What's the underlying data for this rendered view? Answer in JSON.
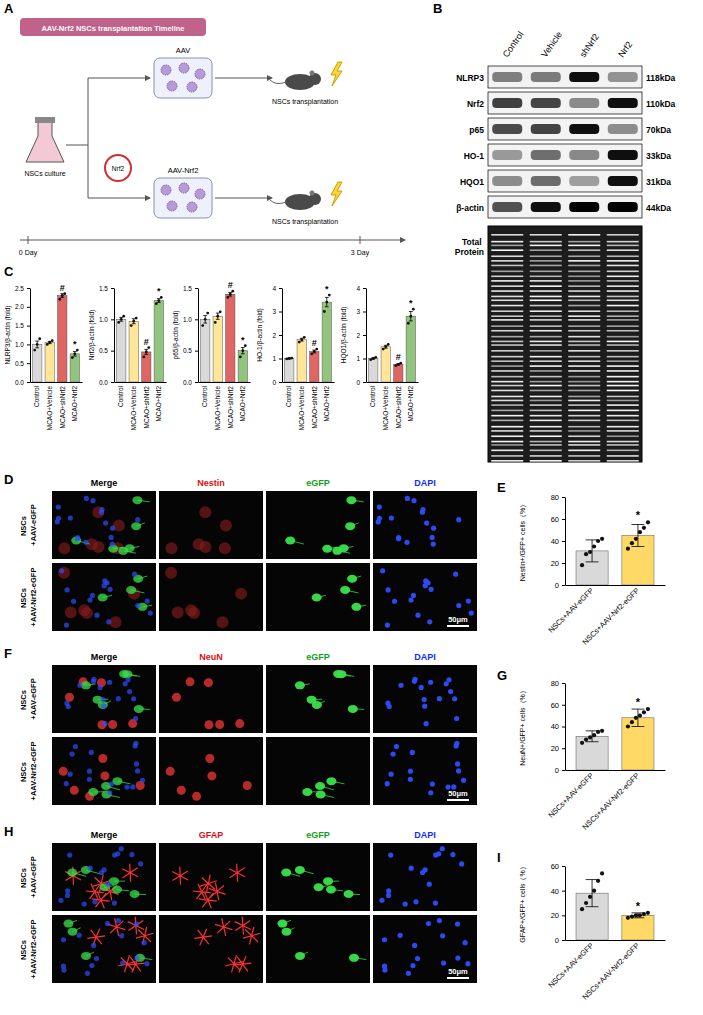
{
  "panel_letters": [
    "A",
    "B",
    "C",
    "D",
    "E",
    "F",
    "G",
    "H",
    "I"
  ],
  "schematic": {
    "title": "AAV-Nrf2 NSCs transplantation Timeline",
    "culture_label": "NSCs culture",
    "vector_labels": [
      "AAV",
      "AAV-Nrf2"
    ],
    "plasmid_label": "Nrf2",
    "transplant_labels": [
      "NSCs transplantation",
      "NSCs transplantation"
    ],
    "timeline_labels": [
      "0 Day",
      "3 Day"
    ]
  },
  "western_blot": {
    "lanes": [
      "Control",
      "Vehicle",
      "shNrf2",
      "Nrf2"
    ],
    "proteins": [
      "NLRP3",
      "Nrf2",
      "p65",
      "HO-1",
      "HQO1",
      "β-actin"
    ],
    "kda": [
      "118kDa",
      "110kDa",
      "70kDa",
      "33kDa",
      "31kDa",
      "44kDa"
    ],
    "total_protein": "Total Protein"
  },
  "chart_data": [
    {
      "type": "bar",
      "y_label": "NLRP3/β-actin (fold)",
      "categories": [
        "Control",
        "MCAO+Vehicle",
        "MCAO+shNrf2",
        "MCAO+Nrf2"
      ],
      "values": [
        1.0,
        1.05,
        2.3,
        0.75
      ],
      "errors": [
        0.09,
        0.03,
        0.05,
        0.06
      ],
      "points": [
        [
          0.85,
          1.0,
          1.15
        ],
        [
          1.0,
          1.05,
          1.1
        ],
        [
          2.2,
          2.3,
          2.35
        ],
        [
          0.65,
          0.75,
          0.85
        ]
      ],
      "colors": [
        "#d9d9d9",
        "#ffe699",
        "#e06666",
        "#93c47d"
      ],
      "significance": [
        null,
        null,
        "#",
        "*"
      ],
      "ylim": [
        0,
        2.5
      ],
      "yticks": [
        {
          "value": 0,
          "label": "0.0"
        },
        0.5,
        {
          "value": 1,
          "label": "1.0"
        },
        1.5,
        {
          "value": 2,
          "label": "2.0"
        },
        2.5
      ]
    },
    {
      "type": "bar",
      "y_label": "Nrf2/β-actin (fold)",
      "categories": [
        "Control",
        "MCAO+Vehicle",
        "MCAO+shNrf2",
        "MCAO+Nrf2"
      ],
      "values": [
        1.0,
        0.97,
        0.48,
        1.3
      ],
      "errors": [
        0.03,
        0.04,
        0.04,
        0.03
      ],
      "points": [
        [
          0.95,
          1.0,
          1.05
        ],
        [
          0.9,
          0.97,
          1.02
        ],
        [
          0.4,
          0.48,
          0.55
        ],
        [
          1.25,
          1.3,
          1.35
        ]
      ],
      "colors": [
        "#d9d9d9",
        "#ffe699",
        "#e06666",
        "#93c47d"
      ],
      "significance": [
        null,
        null,
        "#",
        "*"
      ],
      "ylim": [
        0,
        1.5
      ],
      "yticks": [
        {
          "value": 0,
          "label": "0.0"
        },
        0.5,
        {
          "value": 1,
          "label": "1.0"
        },
        1.5
      ]
    },
    {
      "type": "bar",
      "y_label": "p65/β-actin (fold)",
      "categories": [
        "Control",
        "MCAO+Vehicle",
        "MCAO+shNrf2",
        "MCAO+Nrf2"
      ],
      "values": [
        1.0,
        1.05,
        1.4,
        0.5
      ],
      "errors": [
        0.06,
        0.05,
        0.03,
        0.05
      ],
      "points": [
        [
          0.9,
          1.0,
          1.1
        ],
        [
          0.95,
          1.05,
          1.12
        ],
        [
          1.35,
          1.4,
          1.45
        ],
        [
          0.4,
          0.5,
          0.58
        ]
      ],
      "colors": [
        "#d9d9d9",
        "#ffe699",
        "#e06666",
        "#93c47d"
      ],
      "significance": [
        null,
        null,
        "#",
        "*"
      ],
      "ylim": [
        0,
        1.5
      ],
      "yticks": [
        {
          "value": 0,
          "label": "0.0"
        },
        0.5,
        {
          "value": 1,
          "label": "1.0"
        },
        1.5
      ]
    },
    {
      "type": "bar",
      "y_label": "HO-1/β-actin (fold)",
      "categories": [
        "Control",
        "MCAO+Vehicle",
        "MCAO+shNrf2",
        "MCAO+Nrf2"
      ],
      "values": [
        1.0,
        1.8,
        1.3,
        3.4
      ],
      "errors": [
        0.02,
        0.06,
        0.06,
        0.2
      ],
      "points": [
        [
          0.98,
          1.0,
          1.02
        ],
        [
          1.7,
          1.8,
          1.9
        ],
        [
          1.2,
          1.3,
          1.4
        ],
        [
          3.0,
          3.4,
          3.7
        ]
      ],
      "colors": [
        "#d9d9d9",
        "#ffe699",
        "#e06666",
        "#93c47d"
      ],
      "significance": [
        null,
        null,
        "#",
        "*"
      ],
      "ylim": [
        0,
        4
      ],
      "yticks": [
        0,
        1,
        2,
        3,
        4
      ]
    },
    {
      "type": "bar",
      "y_label": "HQO1/β-actin (fold)",
      "categories": [
        "Control",
        "MCAO+Vehicle",
        "MCAO+shNrf2",
        "MCAO+Nrf2"
      ],
      "values": [
        1.0,
        1.5,
        0.75,
        2.8
      ],
      "errors": [
        0.03,
        0.06,
        0.03,
        0.2
      ],
      "points": [
        [
          0.95,
          1.0,
          1.05
        ],
        [
          1.4,
          1.5,
          1.6
        ],
        [
          0.7,
          0.75,
          0.8
        ],
        [
          2.5,
          2.8,
          3.1
        ]
      ],
      "colors": [
        "#d9d9d9",
        "#ffe699",
        "#e06666",
        "#93c47d"
      ],
      "significance": [
        null,
        null,
        "#",
        "*"
      ],
      "ylim": [
        0,
        4
      ],
      "yticks": [
        0,
        1,
        2,
        3,
        4
      ]
    },
    {
      "type": "bar",
      "y_label": "Nestin+/GFP+ cells（%）",
      "categories": [
        "NSCs+AAV-eGFP",
        "NSCs+AAV-Nrf2-eGFP"
      ],
      "values": [
        31,
        45
      ],
      "errors": [
        10,
        10
      ],
      "points": [
        [
          18,
          28,
          30,
          35,
          40,
          42
        ],
        [
          33,
          38,
          42,
          48,
          52,
          57
        ]
      ],
      "colors": [
        "#d9d9d9",
        "#ffd966"
      ],
      "significance": [
        null,
        "*"
      ],
      "ylim": [
        0,
        80
      ],
      "yticks": [
        0,
        20,
        40,
        60,
        80
      ]
    },
    {
      "type": "bar",
      "y_label": "NeuN+/GFP+ cells（%）",
      "categories": [
        "NSCs+AAV-eGFP",
        "NSCs+AAV-Nrf2-eGFP"
      ],
      "values": [
        31,
        48
      ],
      "errors": [
        5,
        8
      ],
      "points": [
        [
          25,
          28,
          30,
          32,
          35,
          36
        ],
        [
          40,
          44,
          48,
          50,
          53,
          56
        ]
      ],
      "colors": [
        "#d9d9d9",
        "#ffd966"
      ],
      "significance": [
        null,
        "*"
      ],
      "ylim": [
        0,
        80
      ],
      "yticks": [
        0,
        20,
        40,
        60,
        80
      ]
    },
    {
      "type": "bar",
      "y_label": "GFAP+/GFP+ cells（%）",
      "categories": [
        "NSCs+AAV-eGFP",
        "NSCs+AAV-Nrf2-eGFP"
      ],
      "values": [
        38,
        20
      ],
      "errors": [
        11,
        2
      ],
      "points": [
        [
          25,
          30,
          35,
          40,
          48,
          54
        ],
        [
          18,
          19,
          20,
          20,
          21,
          22
        ]
      ],
      "colors": [
        "#d9d9d9",
        "#ffd966"
      ],
      "significance": [
        null,
        "*"
      ],
      "ylim": [
        0,
        60
      ],
      "yticks": [
        0,
        20,
        40,
        60
      ]
    }
  ],
  "micrographs": [
    {
      "columns": [
        "Merge",
        "Nestin",
        "eGFP",
        "DAPI"
      ],
      "rows": [
        "NSCs +AAV-eGFP",
        "NSCs +AAV-Nrf2-eGFP"
      ],
      "scale_bar": "50μm"
    },
    {
      "columns": [
        "Merge",
        "NeuN",
        "eGFP",
        "DAPI"
      ],
      "rows": [
        "NSCs +AAV-eGFP",
        "NSCs +AAV-Nrf2-eGFP"
      ],
      "scale_bar": "50μm"
    },
    {
      "columns": [
        "Merge",
        "GFAP",
        "eGFP",
        "DAPI"
      ],
      "rows": [
        "NSCs +AAV-eGFP",
        "NSCs +AAV-Nrf2-eGFP"
      ],
      "scale_bar": "50μm"
    }
  ]
}
